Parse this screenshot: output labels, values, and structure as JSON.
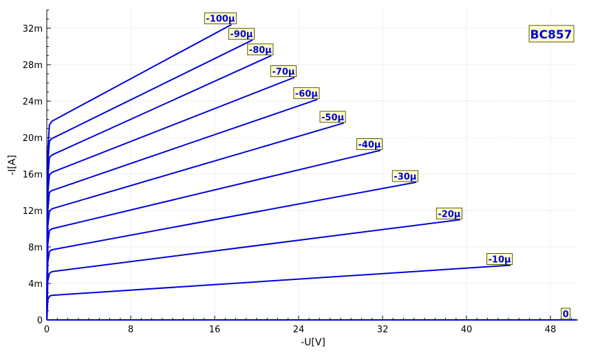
{
  "chart_data": {
    "type": "line",
    "title": "BC857",
    "xlabel": "-U[V]",
    "ylabel": "-I[A]",
    "xlim": [
      0,
      50.5
    ],
    "ylim": [
      0,
      34
    ],
    "x_ticks": [
      0,
      8,
      16,
      24,
      32,
      40,
      48
    ],
    "x_tick_labels": [
      "0",
      "8",
      "16",
      "24",
      "32",
      "40",
      "48"
    ],
    "y_ticks": [
      0,
      4,
      8,
      12,
      16,
      20,
      24,
      28,
      32
    ],
    "y_tick_labels": [
      "0",
      "4m",
      "8m",
      "12m",
      "16m",
      "20m",
      "24m",
      "28m",
      "32m"
    ],
    "grid": true,
    "line_color": "#0000dd",
    "label_bg_color": "#ffffcc",
    "label_border_color": "#555500",
    "series": [
      {
        "name": "-100µ",
        "points": [
          [
            0,
            0
          ],
          [
            0.1,
            18.5
          ],
          [
            0.25,
            21.4
          ],
          [
            0.5,
            21.8
          ],
          [
            17.6,
            32.4
          ]
        ]
      },
      {
        "name": "-90µ",
        "points": [
          [
            0,
            0
          ],
          [
            0.1,
            17.0
          ],
          [
            0.25,
            19.6
          ],
          [
            0.5,
            19.9
          ],
          [
            19.6,
            30.7
          ]
        ]
      },
      {
        "name": "-80µ",
        "points": [
          [
            0,
            0
          ],
          [
            0.1,
            15.5
          ],
          [
            0.25,
            17.8
          ],
          [
            0.5,
            18.1
          ],
          [
            21.4,
            29.0
          ]
        ]
      },
      {
        "name": "-70µ",
        "points": [
          [
            0,
            0
          ],
          [
            0.1,
            13.8
          ],
          [
            0.25,
            15.9
          ],
          [
            0.5,
            16.2
          ],
          [
            23.6,
            26.6
          ]
        ]
      },
      {
        "name": "-60µ",
        "points": [
          [
            0,
            0
          ],
          [
            0.1,
            12.0
          ],
          [
            0.25,
            14.0
          ],
          [
            0.5,
            14.2
          ],
          [
            25.8,
            24.2
          ]
        ]
      },
      {
        "name": "-50µ",
        "points": [
          [
            0,
            0
          ],
          [
            0.1,
            10.3
          ],
          [
            0.25,
            11.9
          ],
          [
            0.5,
            12.2
          ],
          [
            28.3,
            21.6
          ]
        ]
      },
      {
        "name": "-40µ",
        "points": [
          [
            0,
            0
          ],
          [
            0.1,
            8.3
          ],
          [
            0.25,
            9.8
          ],
          [
            0.5,
            10.0
          ],
          [
            31.8,
            18.6
          ]
        ]
      },
      {
        "name": "-30µ",
        "points": [
          [
            0,
            0
          ],
          [
            0.1,
            6.3
          ],
          [
            0.25,
            7.5
          ],
          [
            0.5,
            7.7
          ],
          [
            35.2,
            15.1
          ]
        ]
      },
      {
        "name": "-20µ",
        "points": [
          [
            0,
            0
          ],
          [
            0.1,
            4.3
          ],
          [
            0.25,
            5.1
          ],
          [
            0.5,
            5.3
          ],
          [
            39.4,
            11.0
          ]
        ]
      },
      {
        "name": "-10µ",
        "points": [
          [
            0,
            0
          ],
          [
            0.1,
            2.2
          ],
          [
            0.25,
            2.6
          ],
          [
            0.5,
            2.7
          ],
          [
            44.2,
            6.0
          ]
        ]
      },
      {
        "name": "0",
        "points": [
          [
            0,
            0
          ],
          [
            50.5,
            0
          ]
        ]
      }
    ]
  }
}
